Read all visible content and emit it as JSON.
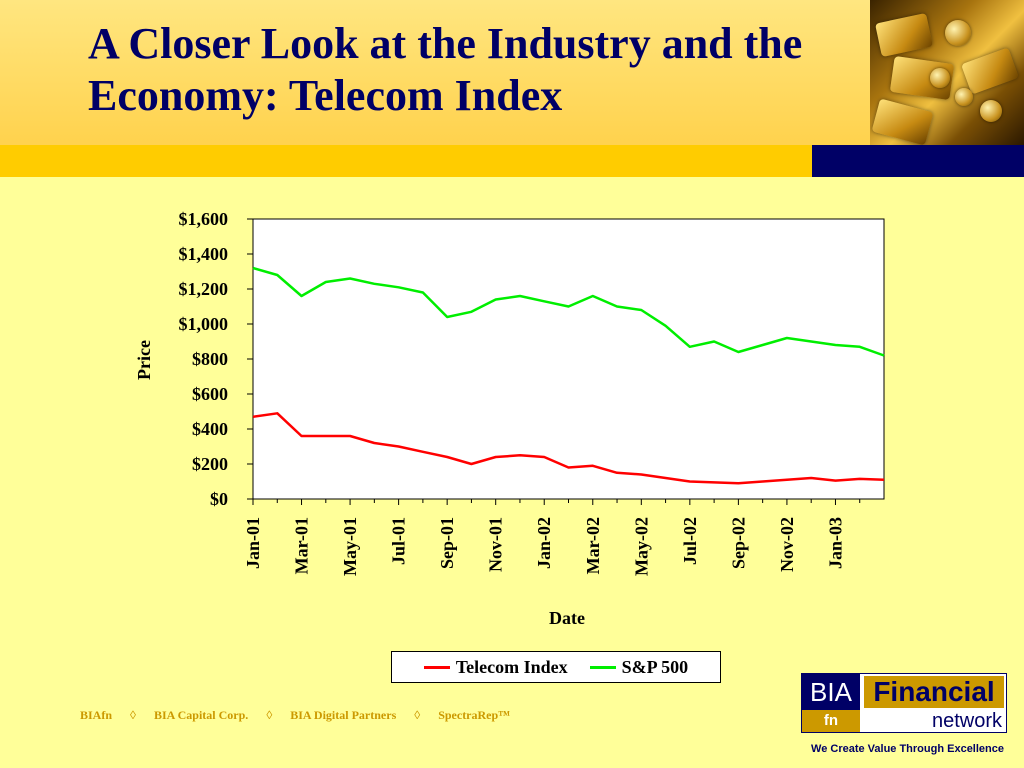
{
  "slide": {
    "title": "A Closer Look at the Industry and the Economy: Telecom Index"
  },
  "chart_data": {
    "type": "line",
    "xlabel": "Date",
    "ylabel": "Price",
    "ylim": [
      0,
      1600
    ],
    "yticks": [
      0,
      200,
      400,
      600,
      800,
      1000,
      1200,
      1400,
      1600
    ],
    "ytick_labels": [
      "$0",
      "$200",
      "$400",
      "$600",
      "$800",
      "$1,000",
      "$1,200",
      "$1,400",
      "$1,600"
    ],
    "xlim": [
      "2001-01",
      "2003-03"
    ],
    "xtick_labels": [
      "Jan-01",
      "Mar-01",
      "May-01",
      "Jul-01",
      "Sep-01",
      "Nov-01",
      "Jan-02",
      "Mar-02",
      "May-02",
      "Jul-02",
      "Sep-02",
      "Nov-02",
      "Jan-03"
    ],
    "grid": false,
    "legend_position": "bottom",
    "x": [
      "2001-01",
      "2001-02",
      "2001-03",
      "2001-04",
      "2001-05",
      "2001-06",
      "2001-07",
      "2001-08",
      "2001-09",
      "2001-10",
      "2001-11",
      "2001-12",
      "2002-01",
      "2002-02",
      "2002-03",
      "2002-04",
      "2002-05",
      "2002-06",
      "2002-07",
      "2002-08",
      "2002-09",
      "2002-10",
      "2002-11",
      "2002-12",
      "2003-01",
      "2003-02",
      "2003-03"
    ],
    "series": [
      {
        "name": "Telecom Index",
        "color": "#ff0000",
        "values": [
          470,
          490,
          360,
          360,
          360,
          320,
          300,
          270,
          240,
          200,
          240,
          250,
          240,
          180,
          190,
          150,
          140,
          120,
          100,
          95,
          90,
          100,
          110,
          120,
          105,
          115,
          110
        ]
      },
      {
        "name": "S&P 500",
        "color": "#00ee00",
        "values": [
          1320,
          1280,
          1160,
          1240,
          1260,
          1230,
          1210,
          1180,
          1040,
          1070,
          1140,
          1160,
          1130,
          1100,
          1160,
          1100,
          1080,
          990,
          870,
          900,
          840,
          880,
          920,
          900,
          880,
          870,
          820
        ]
      }
    ]
  },
  "footer": {
    "links": [
      "BIAfn",
      "BIA Capital Corp.",
      "BIA Digital Partners",
      "SpectraRep™"
    ],
    "separator": "◊",
    "logo_bia": "BIA",
    "logo_fn": "fn",
    "logo_financial": "Financial",
    "logo_network": "network",
    "tagline": "We Create Value Through Excellence"
  },
  "colors": {
    "title": "#000066",
    "background": "#ffff99",
    "accent_gold": "#ffcc00",
    "accent_navy": "#000066",
    "footer_text": "#cc9900"
  }
}
